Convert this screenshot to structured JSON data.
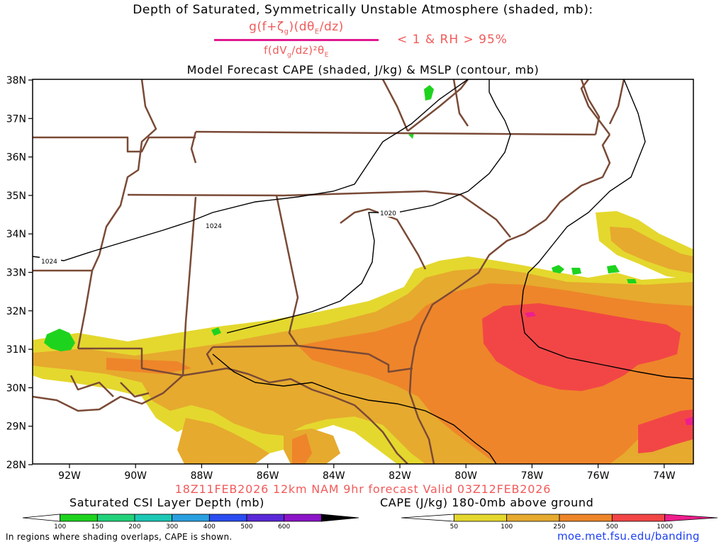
{
  "title_line1": "Depth of Saturated, Symmetrically Unstable Atmosphere (shaded, mb):",
  "formula": {
    "numerator": "g(f+ζg)(dθE/dz)",
    "denominator": "f(dVg/dz)²θE",
    "criteria": "< 1 & RH > 95%"
  },
  "title_line3": "Model Forecast CAPE (shaded, J/kg) & MSLP (contour, mb)",
  "lat_labels": [
    "38N",
    "37N",
    "36N",
    "35N",
    "34N",
    "33N",
    "32N",
    "31N",
    "30N",
    "29N",
    "28N"
  ],
  "lon_labels": [
    "92W",
    "90W",
    "88W",
    "86W",
    "84W",
    "82W",
    "80W",
    "78W",
    "76W",
    "74W"
  ],
  "isobar_labels": [
    "1024",
    "1024",
    "1020"
  ],
  "valid_line": "18Z11FEB2026 12km NAM 9hr forecast Valid 03Z12FEB2026",
  "csi_colorbar": {
    "title": "Saturated CSI Layer Depth (mb)",
    "ticks": [
      "100",
      "150",
      "200",
      "300",
      "400",
      "500",
      "600"
    ],
    "colors": [
      "#ffffff",
      "#1ed31e",
      "#22d27a",
      "#1cc8b4",
      "#2aa0e0",
      "#2a4cf0",
      "#5a28d8",
      "#8c14c8",
      "#000000"
    ]
  },
  "cape_colorbar": {
    "title": "CAPE (J/kg) 180-0mb above ground",
    "ticks": [
      "50",
      "100",
      "250",
      "500",
      "1000"
    ],
    "colors": [
      "#ffffff",
      "#e4d82e",
      "#e6aa2e",
      "#ee852a",
      "#f24646",
      "#ee1e8c"
    ]
  },
  "note": "In regions where shading overlaps, CAPE is shown.",
  "url": "moe.met.fsu.edu/banding",
  "colors": {
    "cape_50_100": "#e4d82e",
    "cape_100_250": "#e6aa2e",
    "cape_250_500": "#ee852a",
    "cape_500_1000": "#f24646",
    "cape_1000_plus": "#ee1e8c",
    "csi_100_150": "#1ed31e",
    "state_borders": "#7a4a36",
    "isobars": "#000000"
  }
}
